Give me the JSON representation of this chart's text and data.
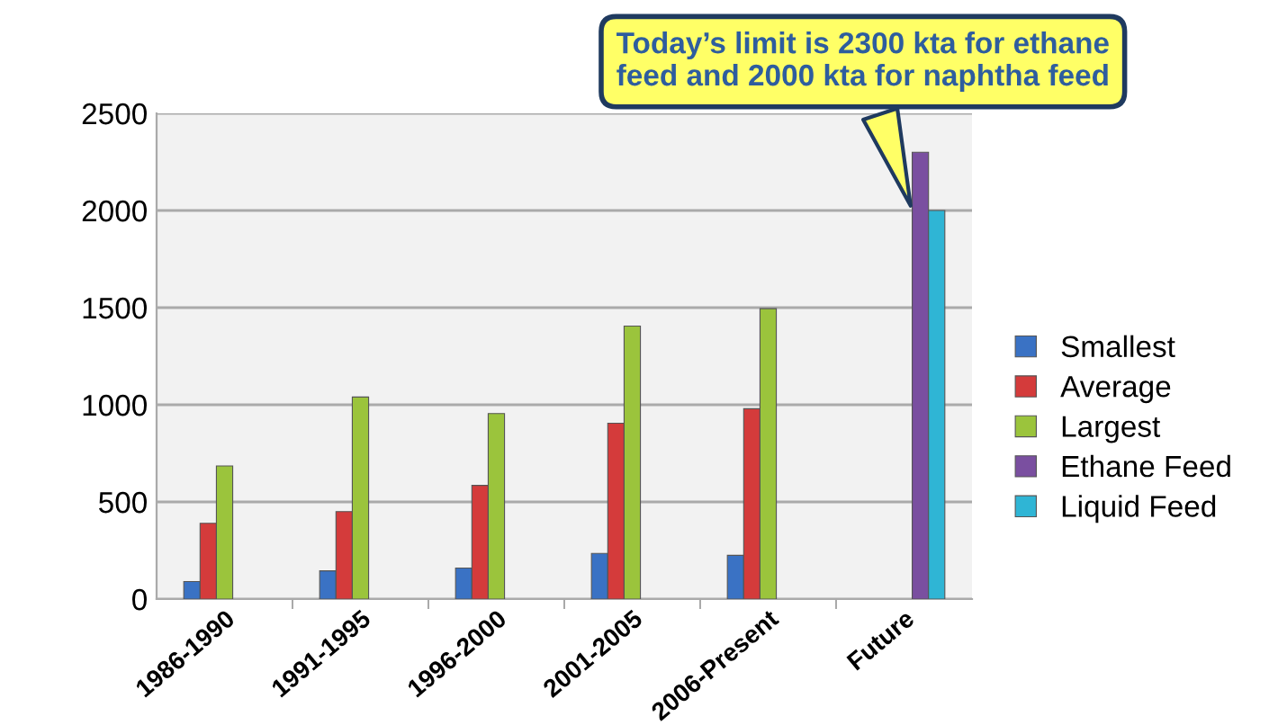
{
  "chart_data": {
    "type": "bar",
    "categories": [
      "1986-1990",
      "1991-1995",
      "1996-2000",
      "2001-2005",
      "2006-Present",
      "Future"
    ],
    "series": [
      {
        "name": "Smallest",
        "color": "#3a72c4",
        "values": [
          90,
          145,
          160,
          235,
          225,
          null
        ]
      },
      {
        "name": "Average",
        "color": "#d43b3b",
        "values": [
          390,
          450,
          585,
          905,
          980,
          null
        ]
      },
      {
        "name": "Largest",
        "color": "#9bc43c",
        "values": [
          685,
          1040,
          955,
          1405,
          1495,
          null
        ]
      },
      {
        "name": "Ethane Feed",
        "color": "#7a4fa0",
        "values": [
          null,
          null,
          null,
          null,
          null,
          2300
        ]
      },
      {
        "name": "Liquid Feed",
        "color": "#2fb5d5",
        "values": [
          null,
          null,
          null,
          null,
          null,
          2000
        ]
      }
    ],
    "ylim": [
      0,
      2500
    ],
    "yticks": [
      0,
      500,
      1000,
      1500,
      2000,
      2500
    ],
    "grid": "y",
    "legend": "right",
    "annotations": [
      {
        "text": "Today’s limit is 2300 kta for ethane\nfeed and 2000 kta for naphtha feed",
        "x": "Future",
        "y": 2000
      }
    ]
  }
}
